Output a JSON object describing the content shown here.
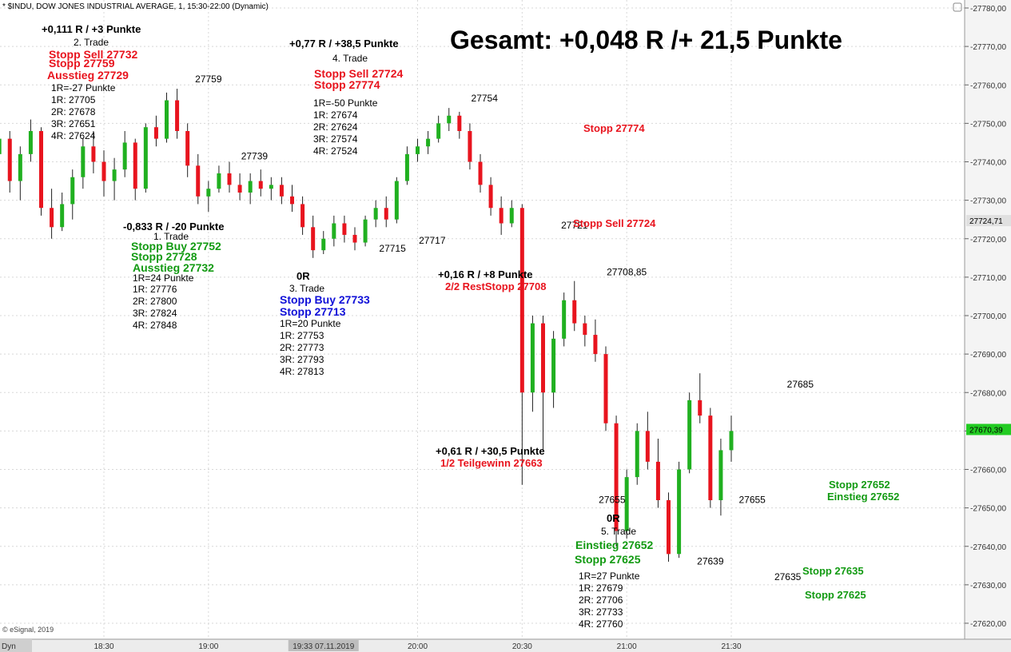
{
  "window": {
    "title": "* $INDU, DOW JONES INDUSTRIAL AVERAGE, 1, 15:30-22:00 (Dynamic)",
    "copyright": "© eSignal, 2019",
    "dyn_label": "Dyn",
    "cursor_time": "19:33 07.11.2019"
  },
  "summary": "Gesamt: +0,048 R /+ 21,5 Punkte",
  "chart_data": {
    "type": "candlestick",
    "title": "* $INDU, DOW JONES INDUSTRIAL AVERAGE, 1, 15:30-22:00 (Dynamic)",
    "x_ticks": [
      "18:30",
      "19:00",
      "19:33 07.11.2019",
      "20:00",
      "20:30",
      "21:00",
      "21:30"
    ],
    "y_ticks": [
      "27780,00",
      "27770,00",
      "27760,00",
      "27750,00",
      "27740,00",
      "27730,00",
      "27720,00",
      "27710,00",
      "27700,00",
      "27690,00",
      "27680,00",
      "27670,00",
      "27660,00",
      "27650,00",
      "27640,00",
      "27630,00",
      "27620,00"
    ],
    "ylim": [
      27616,
      27782
    ],
    "price_markers": [
      {
        "label": "27724,71",
        "value": 27724.71,
        "color": "#e0e0e0"
      },
      {
        "label": "27670,39",
        "value": 27670.39,
        "color": "#22cc22"
      }
    ],
    "swing_labels": [
      {
        "text": "27759",
        "time": 19.0,
        "value": 27759
      },
      {
        "text": "27739",
        "time": 19.22,
        "value": 27739
      },
      {
        "text": "27715",
        "time": 19.88,
        "value": 27715
      },
      {
        "text": "27717",
        "time": 20.07,
        "value": 27717
      },
      {
        "text": "27754",
        "time": 20.32,
        "value": 27754
      },
      {
        "text": "27721",
        "time": 20.75,
        "value": 27721
      },
      {
        "text": "27708,85",
        "time": 21.0,
        "value": 27708.85
      },
      {
        "text": "27655",
        "time": 20.93,
        "value": 27655
      },
      {
        "text": "27639",
        "time": 21.4,
        "value": 27639
      },
      {
        "text": "27655",
        "time": 21.6,
        "value": 27655
      },
      {
        "text": "27635",
        "time": 21.77,
        "value": 27635
      },
      {
        "text": "27685",
        "time": 21.83,
        "value": 27685
      }
    ],
    "candles": [
      {
        "t": 18.0,
        "o": 27742,
        "h": 27752,
        "l": 27737,
        "c": 27746
      },
      {
        "t": 18.05,
        "o": 27746,
        "h": 27748,
        "l": 27732,
        "c": 27735
      },
      {
        "t": 18.1,
        "o": 27735,
        "h": 27744,
        "l": 27730,
        "c": 27742
      },
      {
        "t": 18.15,
        "o": 27742,
        "h": 27751,
        "l": 27740,
        "c": 27748
      },
      {
        "t": 18.2,
        "o": 27748,
        "h": 27749,
        "l": 27726,
        "c": 27728
      },
      {
        "t": 18.25,
        "o": 27728,
        "h": 27733,
        "l": 27720,
        "c": 27723
      },
      {
        "t": 18.3,
        "o": 27723,
        "h": 27732,
        "l": 27722,
        "c": 27729
      },
      {
        "t": 18.35,
        "o": 27729,
        "h": 27738,
        "l": 27725,
        "c": 27736
      },
      {
        "t": 18.4,
        "o": 27736,
        "h": 27746,
        "l": 27733,
        "c": 27744
      },
      {
        "t": 18.45,
        "o": 27744,
        "h": 27748,
        "l": 27737,
        "c": 27740
      },
      {
        "t": 18.5,
        "o": 27740,
        "h": 27743,
        "l": 27731,
        "c": 27735
      },
      {
        "t": 18.55,
        "o": 27735,
        "h": 27741,
        "l": 27730,
        "c": 27738
      },
      {
        "t": 18.6,
        "o": 27738,
        "h": 27748,
        "l": 27736,
        "c": 27745
      },
      {
        "t": 18.65,
        "o": 27745,
        "h": 27746,
        "l": 27730,
        "c": 27733
      },
      {
        "t": 18.7,
        "o": 27733,
        "h": 27750,
        "l": 27732,
        "c": 27749
      },
      {
        "t": 18.75,
        "o": 27749,
        "h": 27752,
        "l": 27744,
        "c": 27746
      },
      {
        "t": 18.8,
        "o": 27746,
        "h": 27758,
        "l": 27745,
        "c": 27756
      },
      {
        "t": 18.85,
        "o": 27756,
        "h": 27759,
        "l": 27746,
        "c": 27748
      },
      {
        "t": 18.9,
        "o": 27748,
        "h": 27750,
        "l": 27736,
        "c": 27739
      },
      {
        "t": 18.95,
        "o": 27739,
        "h": 27742,
        "l": 27729,
        "c": 27731
      },
      {
        "t": 19.0,
        "o": 27731,
        "h": 27735,
        "l": 27727,
        "c": 27733
      },
      {
        "t": 19.05,
        "o": 27733,
        "h": 27739,
        "l": 27732,
        "c": 27737
      },
      {
        "t": 19.1,
        "o": 27737,
        "h": 27740,
        "l": 27732,
        "c": 27734
      },
      {
        "t": 19.15,
        "o": 27734,
        "h": 27737,
        "l": 27730,
        "c": 27732
      },
      {
        "t": 19.2,
        "o": 27732,
        "h": 27737,
        "l": 27729,
        "c": 27735
      },
      {
        "t": 19.25,
        "o": 27735,
        "h": 27738,
        "l": 27731,
        "c": 27733
      },
      {
        "t": 19.3,
        "o": 27733,
        "h": 27736,
        "l": 27730,
        "c": 27734
      },
      {
        "t": 19.35,
        "o": 27734,
        "h": 27736,
        "l": 27729,
        "c": 27731
      },
      {
        "t": 19.4,
        "o": 27731,
        "h": 27734,
        "l": 27727,
        "c": 27729
      },
      {
        "t": 19.45,
        "o": 27729,
        "h": 27731,
        "l": 27721,
        "c": 27723
      },
      {
        "t": 19.5,
        "o": 27723,
        "h": 27726,
        "l": 27715,
        "c": 27717
      },
      {
        "t": 19.55,
        "o": 27717,
        "h": 27722,
        "l": 27716,
        "c": 27720
      },
      {
        "t": 19.6,
        "o": 27720,
        "h": 27726,
        "l": 27718,
        "c": 27724
      },
      {
        "t": 19.65,
        "o": 27724,
        "h": 27726,
        "l": 27719,
        "c": 27721
      },
      {
        "t": 19.7,
        "o": 27721,
        "h": 27723,
        "l": 27717,
        "c": 27719
      },
      {
        "t": 19.75,
        "o": 27719,
        "h": 27726,
        "l": 27718,
        "c": 27725
      },
      {
        "t": 19.8,
        "o": 27725,
        "h": 27730,
        "l": 27723,
        "c": 27728
      },
      {
        "t": 19.85,
        "o": 27728,
        "h": 27731,
        "l": 27723,
        "c": 27725
      },
      {
        "t": 19.9,
        "o": 27725,
        "h": 27736,
        "l": 27724,
        "c": 27735
      },
      {
        "t": 19.95,
        "o": 27735,
        "h": 27744,
        "l": 27734,
        "c": 27742
      },
      {
        "t": 20.0,
        "o": 27742,
        "h": 27746,
        "l": 27740,
        "c": 27744
      },
      {
        "t": 20.05,
        "o": 27744,
        "h": 27748,
        "l": 27742,
        "c": 27746
      },
      {
        "t": 20.1,
        "o": 27746,
        "h": 27752,
        "l": 27745,
        "c": 27750
      },
      {
        "t": 20.15,
        "o": 27750,
        "h": 27754,
        "l": 27748,
        "c": 27752
      },
      {
        "t": 20.2,
        "o": 27752,
        "h": 27753,
        "l": 27746,
        "c": 27748
      },
      {
        "t": 20.25,
        "o": 27748,
        "h": 27750,
        "l": 27738,
        "c": 27740
      },
      {
        "t": 20.3,
        "o": 27740,
        "h": 27742,
        "l": 27732,
        "c": 27734
      },
      {
        "t": 20.35,
        "o": 27734,
        "h": 27736,
        "l": 27726,
        "c": 27728
      },
      {
        "t": 20.4,
        "o": 27728,
        "h": 27731,
        "l": 27721,
        "c": 27724
      },
      {
        "t": 20.45,
        "o": 27724,
        "h": 27730,
        "l": 27723,
        "c": 27728
      },
      {
        "t": 20.5,
        "o": 27728,
        "h": 27729,
        "l": 27656,
        "c": 27680
      },
      {
        "t": 20.55,
        "o": 27680,
        "h": 27700,
        "l": 27675,
        "c": 27698
      },
      {
        "t": 20.6,
        "o": 27698,
        "h": 27700,
        "l": 27665,
        "c": 27680
      },
      {
        "t": 20.65,
        "o": 27680,
        "h": 27696,
        "l": 27676,
        "c": 27694
      },
      {
        "t": 20.7,
        "o": 27694,
        "h": 27706,
        "l": 27692,
        "c": 27704
      },
      {
        "t": 20.75,
        "o": 27704,
        "h": 27709,
        "l": 27696,
        "c": 27698
      },
      {
        "t": 20.8,
        "o": 27698,
        "h": 27700,
        "l": 27692,
        "c": 27695
      },
      {
        "t": 20.85,
        "o": 27695,
        "h": 27699,
        "l": 27688,
        "c": 27690
      },
      {
        "t": 20.9,
        "o": 27690,
        "h": 27692,
        "l": 27670,
        "c": 27672
      },
      {
        "t": 20.95,
        "o": 27672,
        "h": 27674,
        "l": 27640,
        "c": 27644
      },
      {
        "t": 21.0,
        "o": 27644,
        "h": 27660,
        "l": 27642,
        "c": 27658
      },
      {
        "t": 21.05,
        "o": 27658,
        "h": 27672,
        "l": 27656,
        "c": 27670
      },
      {
        "t": 21.1,
        "o": 27670,
        "h": 27675,
        "l": 27660,
        "c": 27662
      },
      {
        "t": 21.15,
        "o": 27662,
        "h": 27668,
        "l": 27650,
        "c": 27652
      },
      {
        "t": 21.2,
        "o": 27652,
        "h": 27654,
        "l": 27636,
        "c": 27638
      },
      {
        "t": 21.25,
        "o": 27638,
        "h": 27662,
        "l": 27637,
        "c": 27660
      },
      {
        "t": 21.3,
        "o": 27660,
        "h": 27680,
        "l": 27659,
        "c": 27678
      },
      {
        "t": 21.35,
        "o": 27678,
        "h": 27685,
        "l": 27672,
        "c": 27674
      },
      {
        "t": 21.4,
        "o": 27674,
        "h": 27676,
        "l": 27650,
        "c": 27652
      },
      {
        "t": 21.45,
        "o": 27652,
        "h": 27668,
        "l": 27648,
        "c": 27665
      },
      {
        "t": 21.5,
        "o": 27665,
        "h": 27674,
        "l": 27662,
        "c": 27670
      }
    ]
  },
  "trades": {
    "t2": {
      "result": "+0,111 R / +3 Punkte",
      "name": "2. Trade",
      "line1": "Stopp Sell 27732",
      "line2": "Stopp 27759",
      "line3": "Ausstieg 27729",
      "r": "1R=-27 Punkte",
      "r1": "1R: 27705",
      "r2": "2R: 27678",
      "r3": "3R: 27651",
      "r4": "4R: 27624"
    },
    "t1": {
      "result": "-0,833 R / -20 Punkte",
      "name": "1. Trade",
      "line1": "Stopp Buy 27752",
      "line2": "Stopp 27728",
      "line3": "Ausstieg 27732",
      "r": "1R=24 Punkte",
      "r1": "1R: 27776",
      "r2": "2R: 27800",
      "r3": "3R: 27824",
      "r4": "4R: 27848"
    },
    "t3": {
      "result": "0R",
      "name": "3. Trade",
      "line1": "Stopp Buy 27733",
      "line2": "Stopp 27713",
      "r": "1R=20 Punkte",
      "r1": "1R: 27753",
      "r2": "2R: 27773",
      "r3": "3R: 27793",
      "r4": "4R: 27813"
    },
    "t4": {
      "result": "+0,77 R / +38,5 Punkte",
      "name": "4. Trade",
      "line1": "Stopp Sell 27724",
      "line2": "Stopp 27774",
      "r": "1R=-50 Punkte",
      "r1": "1R: 27674",
      "r2": "2R: 27624",
      "r3": "3R: 27574",
      "r4": "4R: 27524"
    },
    "t5": {
      "result": "0R",
      "name": "5. Trade",
      "line1": "Einstieg 27652",
      "line2": "Stopp 27625",
      "r": "1R=27 Punkte",
      "r1": "1R: 27679",
      "r2": "2R: 27706",
      "r3": "3R: 27733",
      "r4": "4R: 27760"
    }
  },
  "notes": {
    "stopp_27774": "Stopp 27774",
    "stopp_sell_27724": "Stopp Sell 27724",
    "rest_result": "+0,16 R / +8 Punkte",
    "rest_stopp": "2/2 RestStopp 27708",
    "teil_result": "+0,61 R / +30,5 Punkte",
    "teil_gewinn": "1/2 Teilgewinn 27663",
    "stopp_27652": "Stopp 27652",
    "einstieg_27652": "Einstieg 27652",
    "stopp_27635": "Stopp 27635",
    "stopp_27625": "Stopp 27625"
  },
  "colors": {
    "up": "#20b020",
    "down": "#e8141e",
    "grid": "#d8d8d8",
    "axis_bg": "#ececec"
  }
}
